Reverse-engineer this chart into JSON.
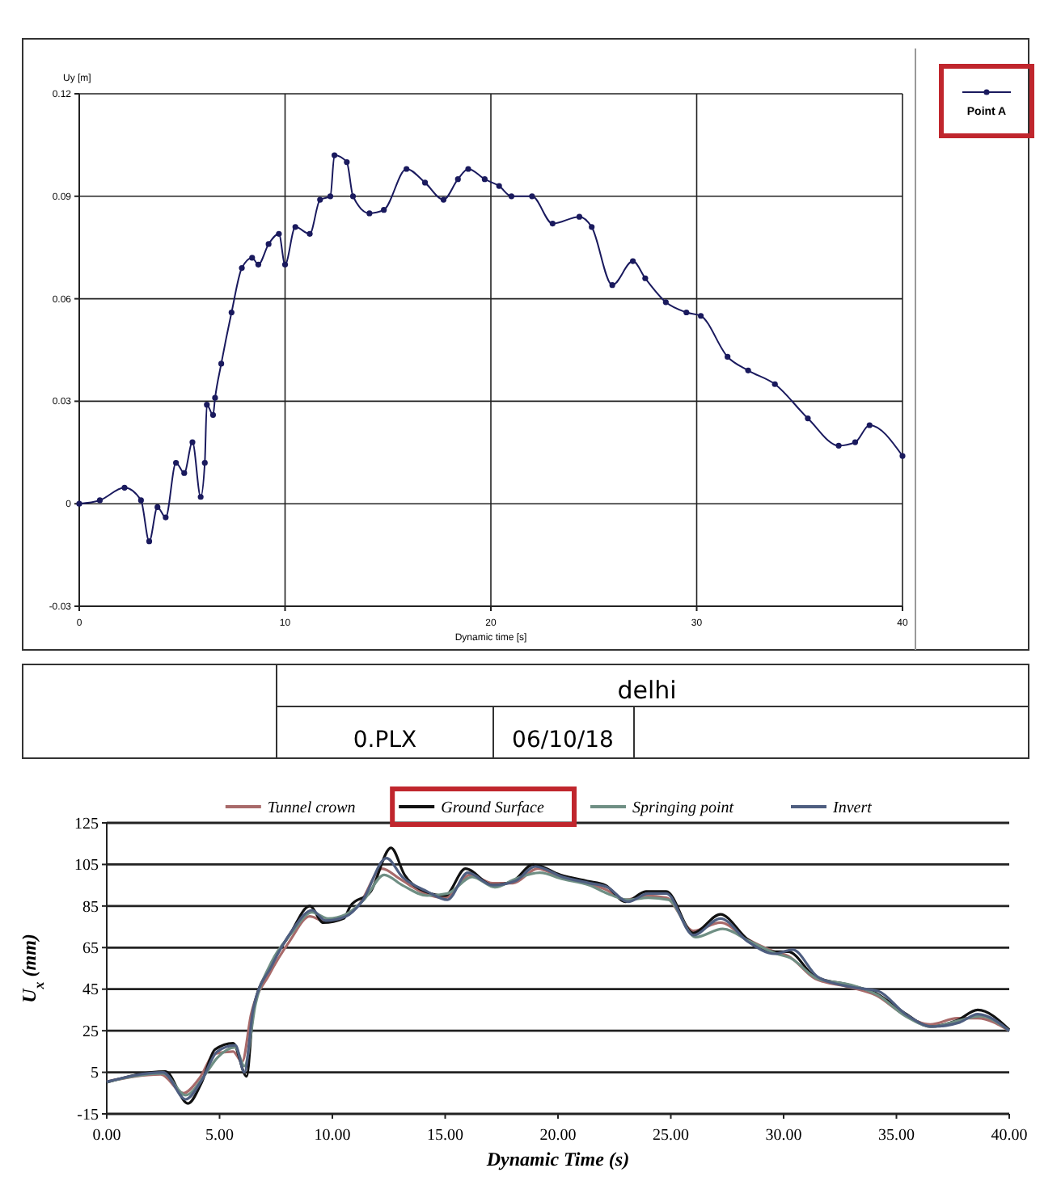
{
  "chart_data": [
    {
      "type": "line",
      "xlabel": "Dynamic time [s]",
      "ylabel": "Uy [m]",
      "xlim": [
        0,
        40
      ],
      "ylim": [
        -0.03,
        0.12
      ],
      "xticks": [
        0,
        10,
        20,
        30,
        40
      ],
      "yticks": [
        -0.03,
        0,
        0.03,
        0.06,
        0.09,
        0.12
      ],
      "grid": true,
      "legend": "right",
      "marker": "circle",
      "line_style": "solid",
      "annotations": [
        "delhi",
        "0.PLX",
        "06/10/18"
      ],
      "series": [
        {
          "name": "Point A",
          "color": "#1a1a5e",
          "x": [
            0,
            1,
            2.2,
            3,
            3.4,
            3.8,
            4.2,
            4.7,
            5.1,
            5.5,
            5.9,
            6.1,
            6.2,
            6.5,
            6.6,
            6.9,
            7.4,
            7.9,
            8.4,
            8.7,
            9.2,
            9.7,
            10,
            10.5,
            11.2,
            11.7,
            12.2,
            12.4,
            13,
            13.3,
            14.1,
            14.8,
            15.9,
            16.8,
            17.7,
            18.4,
            18.9,
            19.7,
            20.4,
            21,
            22,
            23,
            24.3,
            24.9,
            25.9,
            26.9,
            27.5,
            28.5,
            29.5,
            30.2,
            31.5,
            32.5,
            33.8,
            35.4,
            36.9,
            37.7,
            38.4,
            40
          ],
          "values": [
            0,
            0.001,
            0.0047,
            0.001,
            -0.011,
            -0.001,
            -0.004,
            0.012,
            0.009,
            0.018,
            0.002,
            0.012,
            0.029,
            0.026,
            0.031,
            0.041,
            0.056,
            0.069,
            0.072,
            0.07,
            0.076,
            0.079,
            0.07,
            0.081,
            0.079,
            0.089,
            0.09,
            0.102,
            0.1,
            0.09,
            0.085,
            0.086,
            0.098,
            0.094,
            0.089,
            0.095,
            0.098,
            0.095,
            0.093,
            0.09,
            0.09,
            0.082,
            0.084,
            0.081,
            0.064,
            0.071,
            0.066,
            0.059,
            0.056,
            0.055,
            0.043,
            0.039,
            0.035,
            0.025,
            0.017,
            0.018,
            0.023,
            0.014
          ]
        }
      ]
    },
    {
      "type": "line",
      "xlabel": "Dynamic Time (s)",
      "ylabel": "U$_{x}$ (mm)",
      "xlim": [
        0,
        40
      ],
      "ylim": [
        -15,
        125
      ],
      "xticks": [
        {
          "value": 0,
          "label": "0.00"
        },
        {
          "value": 5,
          "label": "5.00"
        },
        {
          "value": 10,
          "label": "10.00"
        },
        {
          "value": 15,
          "label": "15.00"
        },
        {
          "value": 20,
          "label": "20.00"
        },
        {
          "value": 25,
          "label": "25.00"
        },
        {
          "value": 30,
          "label": "30.00"
        },
        {
          "value": 35,
          "label": "35.00"
        },
        {
          "value": 40,
          "label": "40.00"
        }
      ],
      "yticks": [
        -15,
        5,
        25,
        45,
        65,
        85,
        105,
        125
      ],
      "grid": "y",
      "legend": "top",
      "line_style": "solid",
      "series": [
        {
          "name": "Tunnel crown",
          "color": "#a86a6a",
          "x": [
            0,
            2.4,
            3.4,
            4.1,
            4.8,
            5.6,
            6,
            6.4,
            7.2,
            8.1,
            9,
            9.6,
            10.5,
            11.2,
            12.2,
            13,
            14.1,
            15,
            16.1,
            17.1,
            18,
            19.1,
            20.1,
            21.3,
            22.1,
            23,
            23.9,
            24.8,
            26,
            27.2,
            28.4,
            29.6,
            30.2,
            31.4,
            32.9,
            34.1,
            35.3,
            36.5,
            37.7,
            38.6,
            40
          ],
          "values": [
            0.5,
            4,
            -5,
            2,
            14,
            15,
            10,
            33,
            52,
            68,
            80,
            78,
            80,
            86,
            103,
            98,
            91,
            89,
            100,
            96,
            96,
            103,
            99,
            96,
            93,
            88,
            90,
            89,
            73,
            77,
            69,
            63,
            61,
            50,
            46,
            42,
            33,
            28,
            31,
            31,
            25
          ]
        },
        {
          "name": "Ground Surface",
          "color": "#111111",
          "x": [
            0,
            2.6,
            3.6,
            4.2,
            4.8,
            5.6,
            6.2,
            6.5,
            7.2,
            8.1,
            9,
            9.6,
            10.5,
            10.8,
            11.7,
            12.6,
            13.2,
            14.1,
            15,
            15.9,
            17.1,
            18,
            18.9,
            20.1,
            21.3,
            22.1,
            23,
            23.9,
            24.8,
            26,
            27.2,
            28.4,
            29.6,
            30.2,
            31.4,
            32.9,
            34.1,
            35.3,
            36.5,
            37.7,
            38.6,
            40
          ],
          "values": [
            0.2,
            5.4,
            -10,
            0,
            16,
            19,
            3,
            35,
            55,
            71,
            85,
            77,
            79,
            85,
            92,
            113,
            100,
            92,
            90,
            103,
            95,
            97,
            105,
            100,
            97,
            95,
            87,
            92,
            92,
            72,
            81,
            69,
            63,
            63,
            51,
            47,
            43,
            34,
            27,
            30,
            35,
            25.5
          ]
        },
        {
          "name": "Springing point",
          "color": "#6f8f84",
          "x": [
            0,
            2.5,
            3.5,
            4.3,
            4.9,
            5.7,
            6.1,
            6.6,
            7.3,
            8.2,
            9.1,
            9.8,
            10.6,
            11.4,
            12.3,
            13.1,
            14.2,
            15.1,
            16.2,
            17.2,
            18.1,
            19.2,
            20.2,
            21.4,
            22.2,
            23.1,
            24,
            24.9,
            26.1,
            27.3,
            28.5,
            29.7,
            30.3,
            31.5,
            33,
            34.2,
            35.4,
            36.6,
            37.8,
            38.7,
            40
          ],
          "values": [
            0.3,
            4.5,
            -6,
            3,
            12,
            17,
            8,
            38,
            58,
            72,
            82,
            79,
            81,
            88,
            100,
            95,
            90,
            91,
            99,
            94,
            98,
            101,
            98,
            95,
            91,
            88,
            89,
            88,
            70,
            74,
            68,
            62,
            60,
            50,
            47,
            42,
            32,
            27,
            30,
            32,
            25
          ]
        },
        {
          "name": "Invert",
          "color": "#4e5e80",
          "x": [
            0,
            2.5,
            3.5,
            4.2,
            4.9,
            5.7,
            6.1,
            6.5,
            7.3,
            8.2,
            9.1,
            9.7,
            10.6,
            11.3,
            12.4,
            13.1,
            14.2,
            15.1,
            16,
            17.1,
            18.1,
            19,
            20.2,
            21.4,
            22.2,
            23.1,
            24,
            24.8,
            26,
            27.2,
            28.4,
            29.6,
            30.4,
            31.5,
            33,
            34.2,
            35.4,
            36.6,
            37.8,
            38.6,
            40
          ],
          "values": [
            0.4,
            5,
            -8,
            1,
            15,
            18,
            5,
            36,
            56,
            73,
            83,
            78,
            80,
            87,
            108,
            99,
            92,
            88,
            101,
            95,
            97,
            104,
            99,
            96,
            94,
            87,
            91,
            91,
            71,
            79,
            68,
            62,
            64,
            51,
            46,
            44,
            33,
            27,
            29,
            33,
            25
          ]
        }
      ]
    }
  ]
}
